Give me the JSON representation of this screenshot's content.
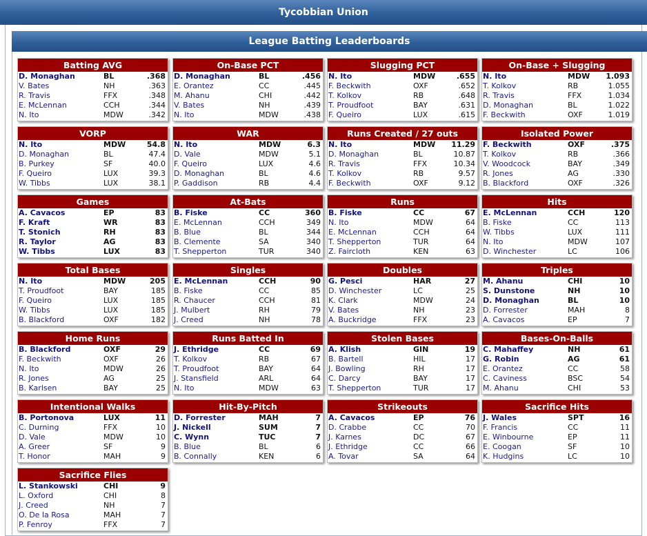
{
  "header": {
    "title": "Tycobbian Union"
  },
  "section": {
    "title": "League Batting Leaderboards"
  },
  "boards": [
    {
      "title": "Batting AVG",
      "rows": [
        [
          "D. Monaghan",
          "BL",
          ".368"
        ],
        [
          "V. Bates",
          "NH",
          ".363"
        ],
        [
          "R. Travis",
          "FFX",
          ".348"
        ],
        [
          "E. McLennan",
          "CCH",
          ".344"
        ],
        [
          "N. Ito",
          "MDW",
          ".342"
        ]
      ]
    },
    {
      "title": "On-Base PCT",
      "rows": [
        [
          "D. Monaghan",
          "BL",
          ".456"
        ],
        [
          "E. Orantez",
          "CC",
          ".445"
        ],
        [
          "M. Ahanu",
          "CHI",
          ".442"
        ],
        [
          "V. Bates",
          "NH",
          ".439"
        ],
        [
          "N. Ito",
          "MDW",
          ".438"
        ]
      ]
    },
    {
      "title": "Slugging PCT",
      "rows": [
        [
          "N. Ito",
          "MDW",
          ".655"
        ],
        [
          "F. Beckwith",
          "OXF",
          ".652"
        ],
        [
          "T. Kolkov",
          "RB",
          ".648"
        ],
        [
          "T. Proudfoot",
          "BAY",
          ".631"
        ],
        [
          "F. Queiro",
          "LUX",
          ".615"
        ]
      ]
    },
    {
      "title": "On-Base + Slugging",
      "rows": [
        [
          "N. Ito",
          "MDW",
          "1.093"
        ],
        [
          "T. Kolkov",
          "RB",
          "1.055"
        ],
        [
          "R. Travis",
          "FFX",
          "1.034"
        ],
        [
          "D. Monaghan",
          "BL",
          "1.022"
        ],
        [
          "F. Beckwith",
          "OXF",
          "1.019"
        ]
      ]
    },
    {
      "title": "VORP",
      "rows": [
        [
          "N. Ito",
          "MDW",
          "54.8"
        ],
        [
          "D. Monaghan",
          "BL",
          "47.4"
        ],
        [
          "B. Purkey",
          "SF",
          "40.0"
        ],
        [
          "F. Queiro",
          "LUX",
          "39.3"
        ],
        [
          "W. Tibbs",
          "LUX",
          "38.1"
        ]
      ]
    },
    {
      "title": "WAR",
      "rows": [
        [
          "N. Ito",
          "MDW",
          "6.3"
        ],
        [
          "D. Vale",
          "MDW",
          "5.1"
        ],
        [
          "F. Queiro",
          "LUX",
          "4.6"
        ],
        [
          "D. Monaghan",
          "BL",
          "4.6"
        ],
        [
          "P. Gaddison",
          "RB",
          "4.4"
        ]
      ]
    },
    {
      "title": "Runs Created / 27 outs",
      "rows": [
        [
          "N. Ito",
          "MDW",
          "11.29"
        ],
        [
          "D. Monaghan",
          "BL",
          "10.87"
        ],
        [
          "R. Travis",
          "FFX",
          "10.34"
        ],
        [
          "T. Kolkov",
          "RB",
          "9.57"
        ],
        [
          "F. Beckwith",
          "OXF",
          "9.12"
        ]
      ]
    },
    {
      "title": "Isolated Power",
      "rows": [
        [
          "F. Beckwith",
          "OXF",
          ".375"
        ],
        [
          "T. Kolkov",
          "RB",
          ".366"
        ],
        [
          "V. Woodcock",
          "BAY",
          ".349"
        ],
        [
          "R. Jones",
          "AG",
          ".330"
        ],
        [
          "B. Blackford",
          "OXF",
          ".326"
        ]
      ]
    },
    {
      "title": "Games",
      "rows": [
        [
          "A. Cavacos",
          "EP",
          "83"
        ],
        [
          "F. Kraft",
          "WR",
          "83"
        ],
        [
          "T. Stonich",
          "RH",
          "83"
        ],
        [
          "R. Taylor",
          "AG",
          "83"
        ],
        [
          "W. Tibbs",
          "LUX",
          "83"
        ]
      ]
    },
    {
      "title": "At-Bats",
      "rows": [
        [
          "B. Fiske",
          "CC",
          "360"
        ],
        [
          "E. McLennan",
          "CCH",
          "349"
        ],
        [
          "B. Blue",
          "BL",
          "344"
        ],
        [
          "B. Clemente",
          "SA",
          "340"
        ],
        [
          "T. Shepperton",
          "TUR",
          "340"
        ]
      ]
    },
    {
      "title": "Runs",
      "rows": [
        [
          "B. Fiske",
          "CC",
          "67"
        ],
        [
          "N. Ito",
          "MDW",
          "64"
        ],
        [
          "E. McLennan",
          "CCH",
          "64"
        ],
        [
          "T. Shepperton",
          "TUR",
          "64"
        ],
        [
          "Z. Faircloth",
          "KEN",
          "63"
        ]
      ]
    },
    {
      "title": "Hits",
      "rows": [
        [
          "E. McLennan",
          "CCH",
          "120"
        ],
        [
          "B. Fiske",
          "CC",
          "113"
        ],
        [
          "W. Tibbs",
          "LUX",
          "111"
        ],
        [
          "N. Ito",
          "MDW",
          "107"
        ],
        [
          "D. Winchester",
          "LC",
          "106"
        ]
      ]
    },
    {
      "title": "Total Bases",
      "rows": [
        [
          "N. Ito",
          "MDW",
          "205"
        ],
        [
          "T. Proudfoot",
          "BAY",
          "185"
        ],
        [
          "F. Queiro",
          "LUX",
          "185"
        ],
        [
          "W. Tibbs",
          "LUX",
          "185"
        ],
        [
          "B. Blackford",
          "OXF",
          "182"
        ]
      ]
    },
    {
      "title": "Singles",
      "rows": [
        [
          "E. McLennan",
          "CCH",
          "90"
        ],
        [
          "B. Fiske",
          "CC",
          "85"
        ],
        [
          "R. Chaucer",
          "CCH",
          "81"
        ],
        [
          "J. Mulbert",
          "RH",
          "79"
        ],
        [
          "J. Creed",
          "NH",
          "78"
        ]
      ]
    },
    {
      "title": "Doubles",
      "rows": [
        [
          "G. Pesci",
          "HAR",
          "27"
        ],
        [
          "D. Winchester",
          "LC",
          "25"
        ],
        [
          "K. Clark",
          "MDW",
          "24"
        ],
        [
          "V. Bates",
          "NH",
          "23"
        ],
        [
          "A. Buckridge",
          "FFX",
          "23"
        ]
      ]
    },
    {
      "title": "Triples",
      "rows": [
        [
          "M. Ahanu",
          "CHI",
          "10"
        ],
        [
          "S. Dunstone",
          "NH",
          "10"
        ],
        [
          "D. Monaghan",
          "BL",
          "10"
        ],
        [
          "D. Forrester",
          "MAH",
          "8"
        ],
        [
          "A. Cavacos",
          "EP",
          "7"
        ]
      ]
    },
    {
      "title": "Home Runs",
      "rows": [
        [
          "B. Blackford",
          "OXF",
          "29"
        ],
        [
          "F. Beckwith",
          "OXF",
          "26"
        ],
        [
          "N. Ito",
          "MDW",
          "26"
        ],
        [
          "R. Jones",
          "AG",
          "25"
        ],
        [
          "B. Karlsen",
          "BAY",
          "25"
        ]
      ]
    },
    {
      "title": "Runs Batted In",
      "rows": [
        [
          "J. Ethridge",
          "CC",
          "69"
        ],
        [
          "T. Kolkov",
          "RB",
          "67"
        ],
        [
          "T. Proudfoot",
          "BAY",
          "64"
        ],
        [
          "J. Stansfield",
          "ARL",
          "64"
        ],
        [
          "N. Ito",
          "MDW",
          "63"
        ]
      ]
    },
    {
      "title": "Stolen Bases",
      "rows": [
        [
          "A. Klish",
          "GIN",
          "19"
        ],
        [
          "B. Bartell",
          "HIL",
          "17"
        ],
        [
          "J. Bowling",
          "RH",
          "17"
        ],
        [
          "C. Darcy",
          "BAY",
          "17"
        ],
        [
          "T. Shepperton",
          "TUR",
          "17"
        ]
      ]
    },
    {
      "title": "Bases-On-Balls",
      "rows": [
        [
          "C. Mahaffey",
          "NH",
          "61"
        ],
        [
          "G. Robin",
          "AG",
          "61"
        ],
        [
          "E. Orantez",
          "CC",
          "58"
        ],
        [
          "C. Caviness",
          "BSC",
          "54"
        ],
        [
          "M. Ahanu",
          "CHI",
          "53"
        ]
      ]
    },
    {
      "title": "Intentional Walks",
      "rows": [
        [
          "B. Portonova",
          "LUX",
          "11"
        ],
        [
          "C. Durning",
          "FFX",
          "10"
        ],
        [
          "D. Vale",
          "MDW",
          "10"
        ],
        [
          "A. Greer",
          "SF",
          "9"
        ],
        [
          "T. Honor",
          "MAH",
          "9"
        ]
      ]
    },
    {
      "title": "Hit-By-Pitch",
      "rows": [
        [
          "D. Forrester",
          "MAH",
          "7"
        ],
        [
          "J. Nickell",
          "SUM",
          "7"
        ],
        [
          "C. Wynn",
          "TUC",
          "7"
        ],
        [
          "B. Blue",
          "BL",
          "6"
        ],
        [
          "B. Connally",
          "KEN",
          "6"
        ]
      ]
    },
    {
      "title": "Strikeouts",
      "rows": [
        [
          "A. Cavacos",
          "EP",
          "76"
        ],
        [
          "D. Crabbe",
          "CC",
          "70"
        ],
        [
          "J. Karnes",
          "DC",
          "67"
        ],
        [
          "J. Ethridge",
          "CC",
          "66"
        ],
        [
          "A. Tovar",
          "SA",
          "64"
        ]
      ]
    },
    {
      "title": "Sacrifice Hits",
      "rows": [
        [
          "J. Wales",
          "SPT",
          "16"
        ],
        [
          "F. Francis",
          "CC",
          "11"
        ],
        [
          "E. Winbourne",
          "EP",
          "11"
        ],
        [
          "E. Coogan",
          "SF",
          "10"
        ],
        [
          "K. Hudgins",
          "LC",
          "10"
        ]
      ]
    },
    {
      "title": "Sacrifice Flies",
      "rows": [
        [
          "L. Stankowski",
          "CHI",
          "9"
        ],
        [
          "L. Oxford",
          "CHI",
          "8"
        ],
        [
          "J. Creed",
          "NH",
          "7"
        ],
        [
          "O. De la Rosa",
          "MAH",
          "7"
        ],
        [
          "P. Fenroy",
          "FFX",
          "7"
        ]
      ]
    }
  ]
}
